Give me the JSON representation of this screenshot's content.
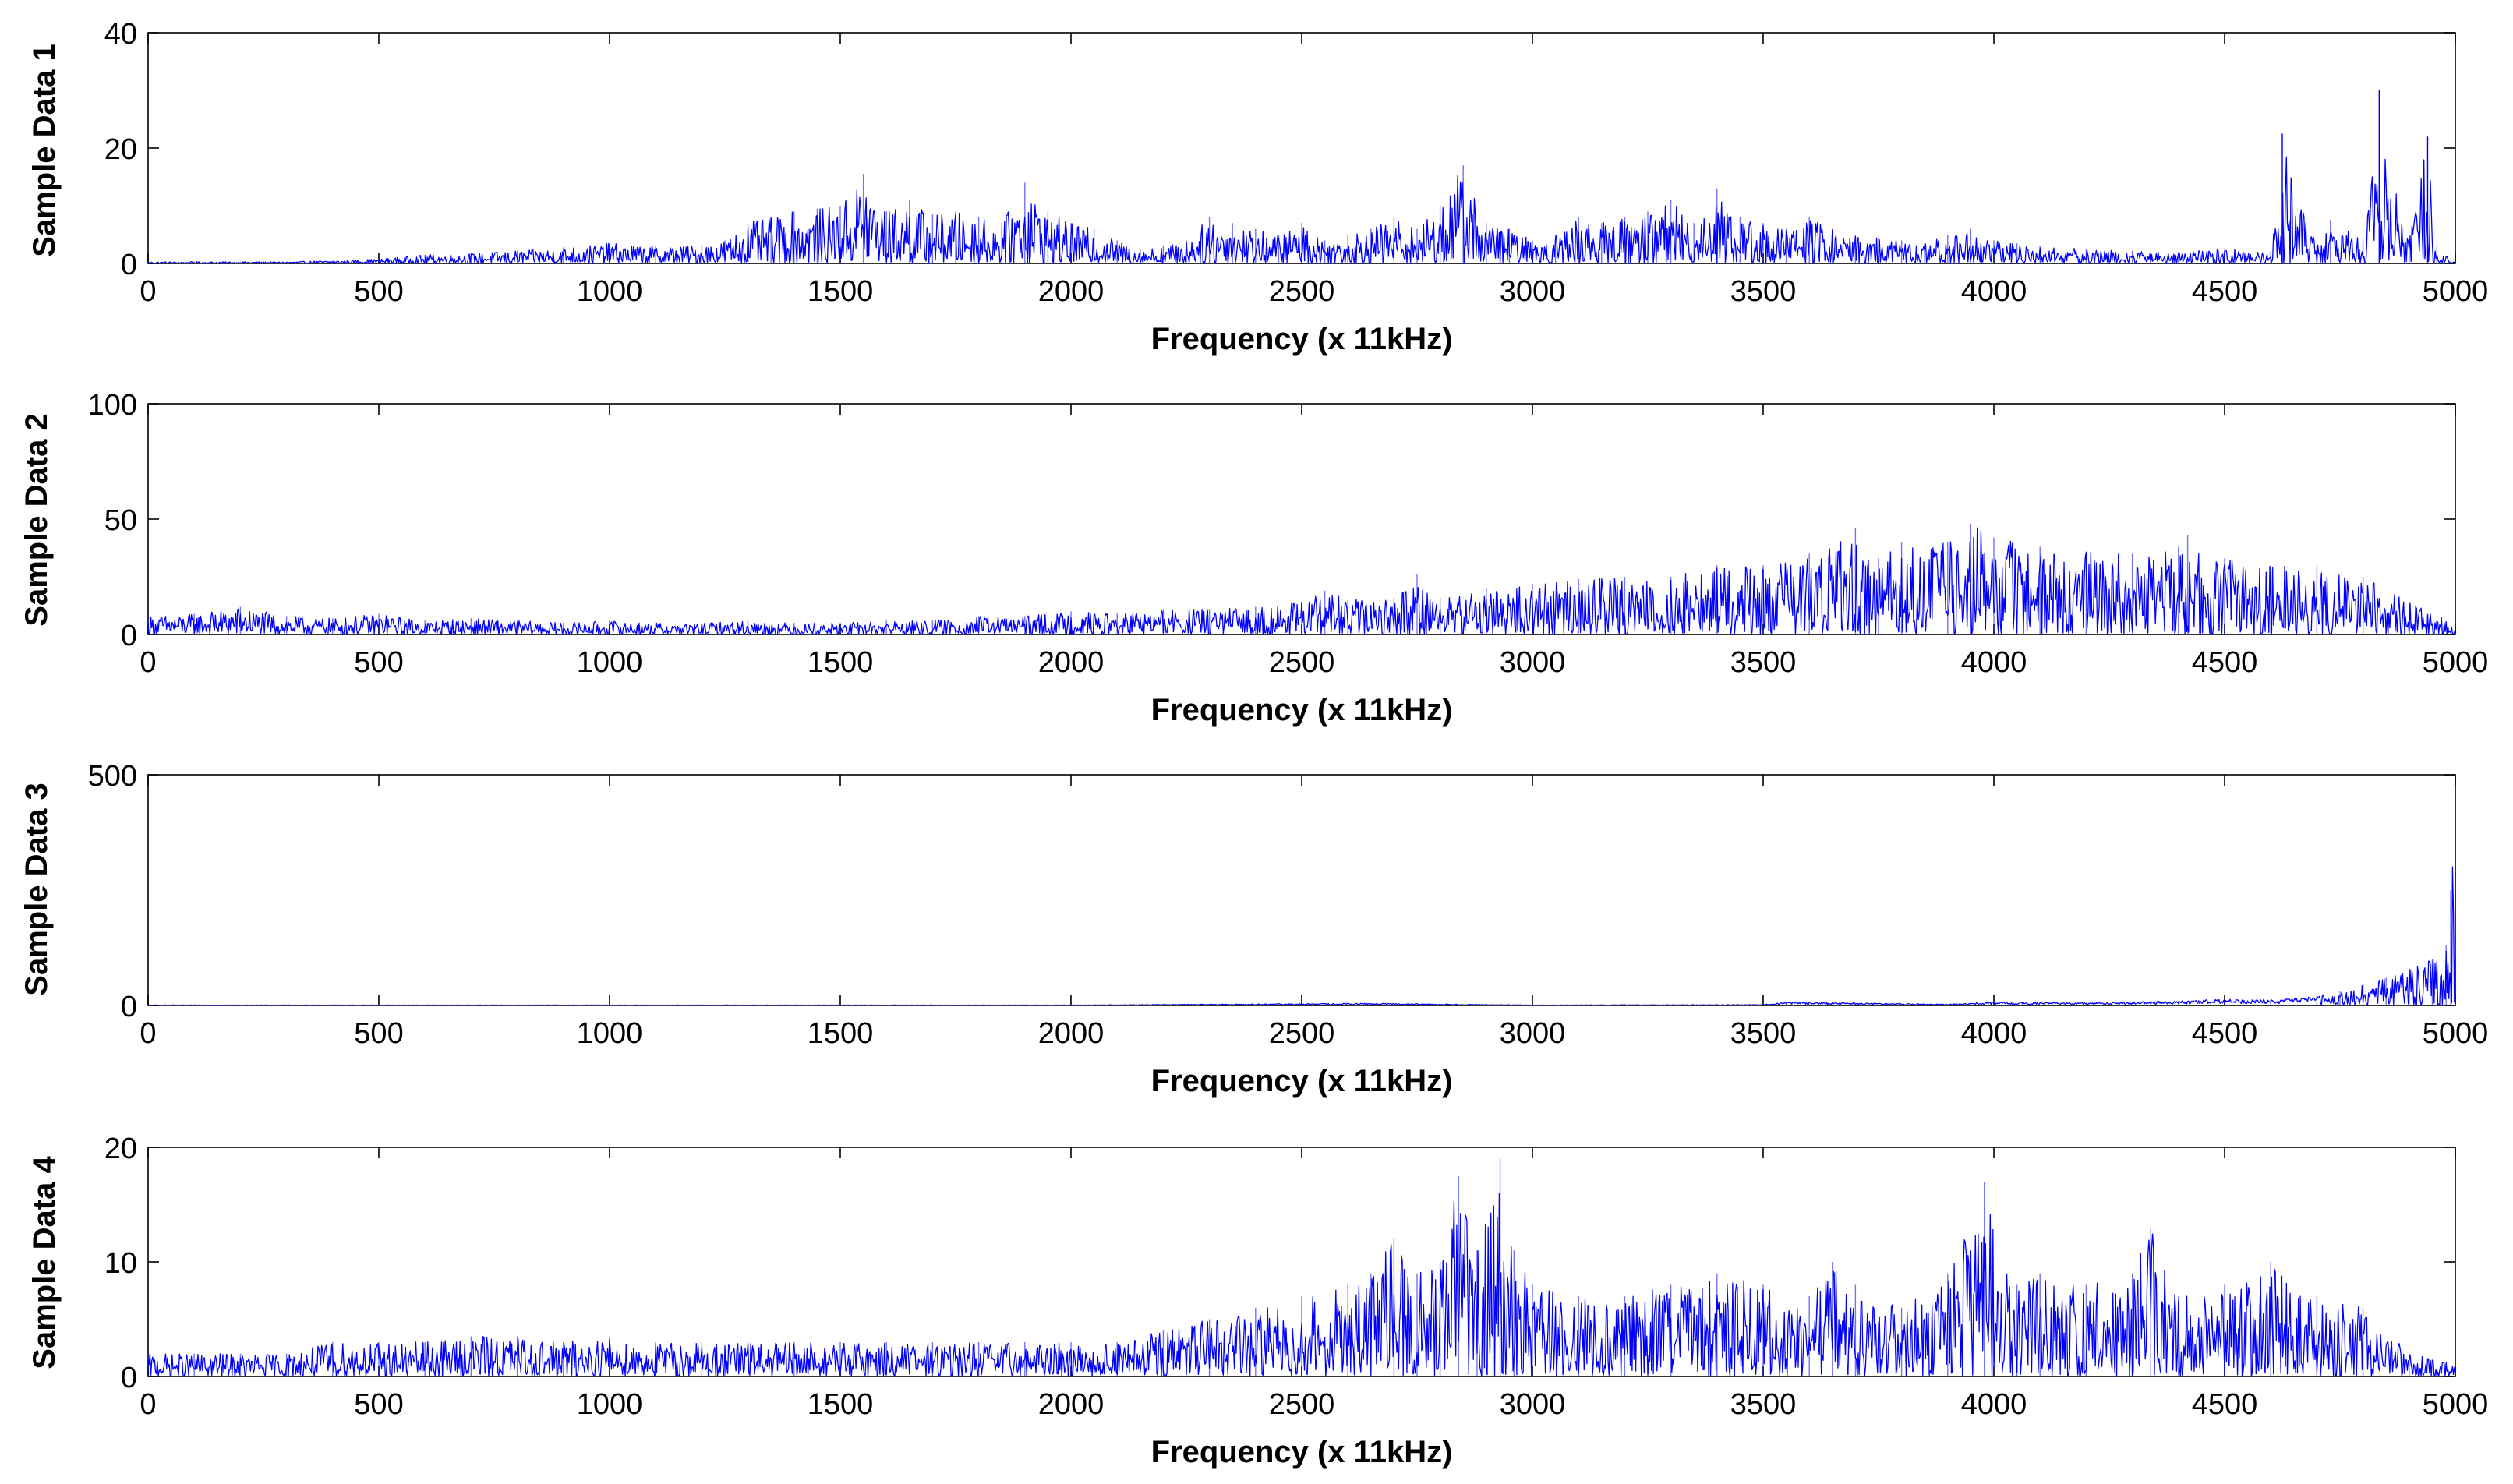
{
  "chart_data": [
    {
      "type": "line",
      "title": "",
      "xlabel": "Frequency (x 11kHz)",
      "ylabel": "Sample Data 1",
      "xlim": [
        0,
        5000
      ],
      "ylim": [
        0,
        40
      ],
      "xticks": [
        0,
        500,
        1000,
        1500,
        2000,
        2500,
        3000,
        3500,
        4000,
        4500,
        5000
      ],
      "yticks": [
        0,
        20,
        40
      ],
      "grid": false,
      "series": [
        {
          "name": "Sample Data 1",
          "color": "#0000ff",
          "x": [
            0,
            100,
            200,
            300,
            400,
            500,
            600,
            700,
            800,
            900,
            1000,
            1100,
            1200,
            1250,
            1300,
            1350,
            1400,
            1450,
            1500,
            1550,
            1600,
            1650,
            1700,
            1750,
            1800,
            1850,
            1900,
            1950,
            2000,
            2050,
            2100,
            2150,
            2200,
            2250,
            2300,
            2350,
            2400,
            2450,
            2500,
            2550,
            2600,
            2650,
            2700,
            2750,
            2800,
            2850,
            2900,
            2950,
            3000,
            3050,
            3100,
            3150,
            3200,
            3250,
            3300,
            3350,
            3400,
            3450,
            3500,
            3550,
            3600,
            3650,
            3700,
            3750,
            3800,
            3850,
            3900,
            3950,
            4000,
            4050,
            4100,
            4200,
            4300,
            4400,
            4500,
            4600,
            4625,
            4700,
            4730,
            4800,
            4835,
            4900,
            4940,
            4960,
            5000
          ],
          "values": [
            0.3,
            0.3,
            0.3,
            0.3,
            0.5,
            0.8,
            1.5,
            1.8,
            2.2,
            2.8,
            3.5,
            3,
            3.2,
            4,
            7,
            8,
            9,
            9.5,
            10,
            15.5,
            9,
            11,
            8.5,
            9,
            8,
            7,
            14,
            9,
            7,
            6,
            4,
            2.5,
            3,
            4,
            8,
            7,
            6,
            5,
            7,
            4,
            5,
            6,
            8,
            6,
            10,
            17,
            7,
            6,
            4,
            5,
            8,
            7,
            8,
            9,
            11,
            7,
            13,
            8,
            7,
            6,
            8,
            6,
            5,
            4.5,
            4,
            3.5,
            5,
            6,
            4,
            3.5,
            3,
            2.5,
            2.2,
            2,
            2.5,
            2,
            22.5,
            3,
            7.5,
            4,
            30,
            4,
            22,
            3,
            0.3
          ]
        }
      ]
    },
    {
      "type": "line",
      "title": "",
      "xlabel": "Frequency (x 11kHz)",
      "ylabel": "Sample Data 2",
      "xlim": [
        0,
        5000
      ],
      "ylim": [
        0,
        100
      ],
      "xticks": [
        0,
        500,
        1000,
        1500,
        2000,
        2500,
        3000,
        3500,
        4000,
        4500,
        5000
      ],
      "yticks": [
        0,
        50,
        100
      ],
      "grid": false,
      "series": [
        {
          "name": "Sample Data 2",
          "color": "#0000ff",
          "x": [
            0,
            100,
            200,
            300,
            400,
            500,
            600,
            700,
            800,
            900,
            1000,
            1100,
            1200,
            1300,
            1400,
            1500,
            1600,
            1700,
            1800,
            1900,
            2000,
            2100,
            2200,
            2300,
            2400,
            2500,
            2550,
            2600,
            2700,
            2750,
            2800,
            2900,
            3000,
            3100,
            3200,
            3300,
            3400,
            3500,
            3600,
            3700,
            3750,
            3800,
            3900,
            3950,
            4000,
            4100,
            4200,
            4300,
            4400,
            4420,
            4500,
            4600,
            4700,
            4800,
            4900,
            5000
          ],
          "values": [
            8,
            9,
            12,
            8,
            7,
            9,
            6,
            7,
            6,
            5,
            6,
            5,
            5,
            6,
            5,
            5,
            6,
            6,
            8,
            8,
            10,
            9,
            11,
            11,
            12,
            14,
            19,
            15,
            16,
            26,
            16,
            20,
            22,
            24,
            25,
            25,
            30,
            30,
            35,
            46,
            33,
            40,
            40,
            48,
            42,
            38,
            36,
            35,
            38,
            43,
            33,
            30,
            30,
            25,
            14,
            5
          ]
        }
      ]
    },
    {
      "type": "line",
      "title": "",
      "xlabel": "Frequency (x 11kHz)",
      "ylabel": "Sample Data 3",
      "xlim": [
        0,
        5000
      ],
      "ylim": [
        0,
        500
      ],
      "xticks": [
        0,
        500,
        1000,
        1500,
        2000,
        2500,
        3000,
        3500,
        4000,
        4500,
        5000
      ],
      "yticks": [
        0,
        500
      ],
      "grid": false,
      "series": [
        {
          "name": "Sample Data 3",
          "color": "#0000ff",
          "x": [
            0,
            1000,
            2000,
            2650,
            3000,
            3500,
            3550,
            3900,
            4000,
            4200,
            4400,
            4500,
            4600,
            4700,
            4750,
            4800,
            4850,
            4900,
            4950,
            4980,
            4990,
            5000
          ],
          "values": [
            1,
            1,
            1,
            5,
            1,
            2,
            8,
            3,
            8,
            6,
            10,
            14,
            12,
            20,
            30,
            45,
            60,
            80,
            100,
            130,
            250,
            390
          ]
        }
      ]
    },
    {
      "type": "line",
      "title": "",
      "xlabel": "Frequency (x 11kHz)",
      "ylabel": "Sample Data 4",
      "xlim": [
        0,
        5000
      ],
      "ylim": [
        0,
        20
      ],
      "xticks": [
        0,
        500,
        1000,
        1500,
        2000,
        2500,
        3000,
        3500,
        4000,
        4500,
        5000
      ],
      "yticks": [
        0,
        10,
        20
      ],
      "grid": false,
      "series": [
        {
          "name": "Sample Data 4",
          "color": "#0000ff",
          "x": [
            0,
            100,
            200,
            300,
            400,
            500,
            600,
            700,
            800,
            900,
            1000,
            1100,
            1200,
            1300,
            1400,
            1500,
            1600,
            1700,
            1800,
            1900,
            2000,
            2100,
            2200,
            2300,
            2400,
            2500,
            2600,
            2650,
            2700,
            2750,
            2800,
            2840,
            2880,
            2930,
            2960,
            3000,
            3100,
            3200,
            3300,
            3400,
            3500,
            3600,
            3650,
            3700,
            3800,
            3900,
            3980,
            4050,
            4100,
            4200,
            4300,
            4340,
            4400,
            4500,
            4600,
            4700,
            4800,
            4900,
            5000
          ],
          "values": [
            2,
            2,
            2,
            2,
            3,
            3,
            3,
            3.5,
            3.5,
            3,
            3.5,
            3,
            3,
            3,
            3,
            3,
            3,
            3,
            3,
            3,
            3,
            3,
            4,
            5,
            6,
            7,
            8,
            9,
            12,
            9,
            10,
            17.5,
            11,
            19,
            11,
            8,
            7,
            7,
            8,
            9,
            8,
            7,
            10,
            8,
            6,
            9,
            17,
            8,
            9,
            8,
            9,
            13,
            7,
            8,
            10,
            7,
            6,
            2,
            1
          ]
        }
      ]
    }
  ]
}
